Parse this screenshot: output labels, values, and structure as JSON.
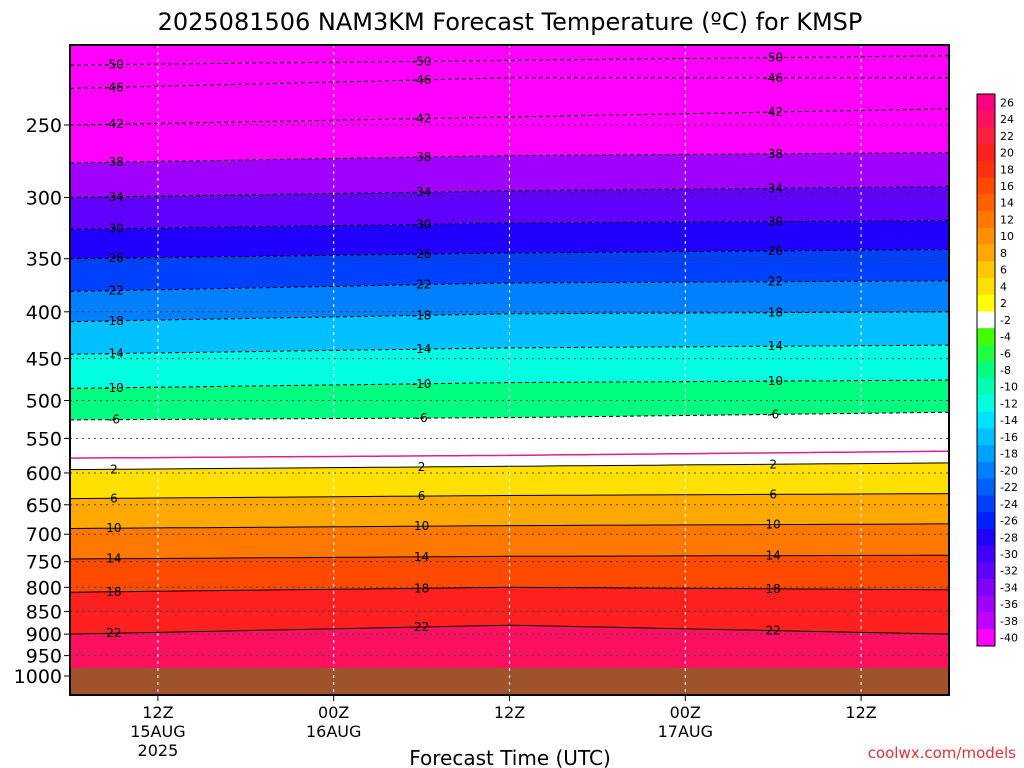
{
  "chart_data": {
    "type": "heatmap",
    "title": "2025081506 NAM3KM Forecast Temperature (ºC) for KMSP",
    "xlabel": "Forecast Time (UTC)",
    "ylabel": "",
    "credit": "coolwx.com/models",
    "y_scale": "pressure (log)",
    "ylim": [
      1000,
      200
    ],
    "pressure_levels": [
      250,
      300,
      350,
      400,
      450,
      500,
      550,
      600,
      650,
      700,
      750,
      800,
      850,
      900,
      950,
      1000
    ],
    "x_ticks": [
      {
        "t": 6,
        "line1": "12Z",
        "line2": "15AUG",
        "line3": "2025"
      },
      {
        "t": 18,
        "line1": "00Z",
        "line2": "16AUG",
        "line3": ""
      },
      {
        "t": 30,
        "line1": "12Z",
        "line2": "",
        "line3": ""
      },
      {
        "t": 42,
        "line1": "00Z",
        "line2": "17AUG",
        "line3": ""
      },
      {
        "t": 54,
        "line1": "12Z",
        "line2": "",
        "line3": ""
      }
    ],
    "xlim": [
      0,
      60
    ],
    "colorbar": {
      "labels": [
        "26",
        "24",
        "22",
        "20",
        "18",
        "16",
        "14",
        "12",
        "10",
        "8",
        "6",
        "4",
        "2",
        "-2",
        "-4",
        "-6",
        "-8",
        "-10",
        "-12",
        "-14",
        "-16",
        "-18",
        "-20",
        "-22",
        "-24",
        "-26",
        "-28",
        "-30",
        "-32",
        "-34",
        "-36",
        "-38",
        "-40"
      ],
      "colors": [
        "#ff0080",
        "#ff1060",
        "#ff2040",
        "#ff2020",
        "#ff3010",
        "#ff4a00",
        "#ff6000",
        "#ff7800",
        "#ff9000",
        "#ffa800",
        "#ffc800",
        "#ffe000",
        "#ffff00",
        "#ffffff",
        "#40ff00",
        "#20ff40",
        "#00ff80",
        "#00ffb0",
        "#00ffe0",
        "#00e0ff",
        "#00c0ff",
        "#00a0ff",
        "#0080ff",
        "#0060ff",
        "#0040ff",
        "#0020ff",
        "#2000ff",
        "#4000ff",
        "#6000ff",
        "#8000ff",
        "#a000ff",
        "#c000ff",
        "#ff00ff"
      ]
    },
    "isotherms": [
      {
        "temp": "-50",
        "profile": [
          [
            0,
            215
          ],
          [
            60,
            210
          ]
        ]
      },
      {
        "temp": "-46",
        "profile": [
          [
            0,
            228
          ],
          [
            30,
            222
          ],
          [
            60,
            222
          ]
        ]
      },
      {
        "temp": "-42",
        "profile": [
          [
            0,
            250
          ],
          [
            30,
            245
          ],
          [
            60,
            240
          ]
        ]
      },
      {
        "temp": "-38",
        "profile": [
          [
            0,
            275
          ],
          [
            30,
            270
          ],
          [
            60,
            268
          ]
        ]
      },
      {
        "temp": "-34",
        "profile": [
          [
            0,
            300
          ],
          [
            30,
            295
          ],
          [
            60,
            292
          ]
        ]
      },
      {
        "temp": "-30",
        "profile": [
          [
            0,
            325
          ],
          [
            30,
            320
          ],
          [
            60,
            318
          ]
        ]
      },
      {
        "temp": "-26",
        "profile": [
          [
            0,
            350
          ],
          [
            30,
            345
          ],
          [
            60,
            342
          ]
        ]
      },
      {
        "temp": "-22",
        "profile": [
          [
            0,
            380
          ],
          [
            30,
            372
          ],
          [
            60,
            370
          ]
        ]
      },
      {
        "temp": "-18",
        "profile": [
          [
            0,
            410
          ],
          [
            30,
            402
          ],
          [
            60,
            400
          ]
        ]
      },
      {
        "temp": "-14",
        "profile": [
          [
            0,
            445
          ],
          [
            30,
            438
          ],
          [
            60,
            435
          ]
        ]
      },
      {
        "temp": "-10",
        "profile": [
          [
            0,
            485
          ],
          [
            30,
            478
          ],
          [
            60,
            475
          ]
        ]
      },
      {
        "temp": "-6",
        "profile": [
          [
            0,
            525
          ],
          [
            30,
            522
          ],
          [
            60,
            515
          ]
        ]
      },
      {
        "temp": "2",
        "profile": [
          [
            0,
            595
          ],
          [
            30,
            590
          ],
          [
            60,
            585
          ]
        ]
      },
      {
        "temp": "6",
        "profile": [
          [
            0,
            640
          ],
          [
            30,
            635
          ],
          [
            60,
            632
          ]
        ]
      },
      {
        "temp": "10",
        "profile": [
          [
            0,
            690
          ],
          [
            30,
            685
          ],
          [
            60,
            682
          ]
        ]
      },
      {
        "temp": "14",
        "profile": [
          [
            0,
            745
          ],
          [
            30,
            740
          ],
          [
            60,
            738
          ]
        ]
      },
      {
        "temp": "18",
        "profile": [
          [
            0,
            810
          ],
          [
            30,
            800
          ],
          [
            60,
            805
          ]
        ]
      },
      {
        "temp": "22",
        "profile": [
          [
            0,
            900
          ],
          [
            30,
            880
          ],
          [
            60,
            900
          ]
        ]
      }
    ]
  }
}
